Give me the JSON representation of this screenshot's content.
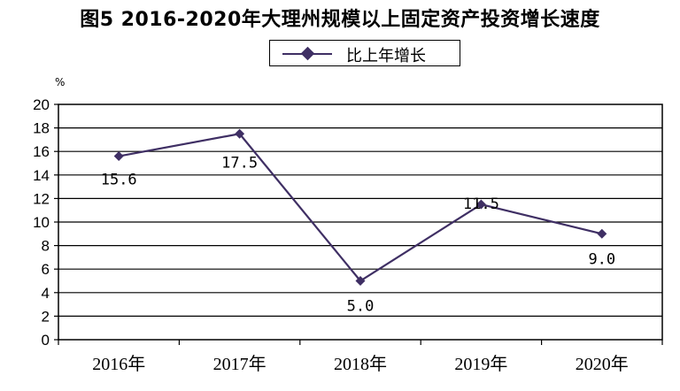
{
  "chart_data": {
    "type": "line",
    "title": "图5 2016-2020年大理州规模以上固定资产投资增长速度",
    "unit_label": "%",
    "categories": [
      "2016年",
      "2017年",
      "2018年",
      "2019年",
      "2020年"
    ],
    "series": [
      {
        "name": "比上年增长",
        "values": [
          15.6,
          17.5,
          5.0,
          11.5,
          9.0
        ]
      }
    ],
    "data_labels": [
      "15.6",
      "17.5",
      "5.0",
      "11.5",
      "9.0"
    ],
    "y_ticks": [
      "0",
      "2",
      "4",
      "6",
      "8",
      "10",
      "12",
      "14",
      "16",
      "18",
      "20"
    ],
    "ylim": [
      0,
      20
    ],
    "grid": true,
    "legend_position": "top",
    "line_color": "#3f2f64"
  }
}
